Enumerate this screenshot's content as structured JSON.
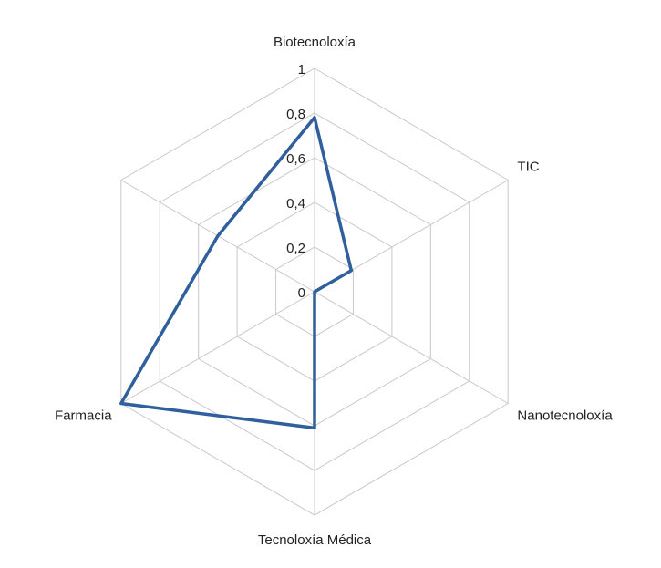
{
  "chart_data": {
    "type": "radar",
    "categories": [
      "Biotecnoloxía",
      "TIC",
      "Nanotecnoloxía",
      "Tecnoloxía Médica",
      "Farmacia",
      null
    ],
    "values": [
      0.78,
      0.19,
      0,
      0.61,
      1,
      0.5
    ],
    "color": "#2f5f9c",
    "ylim": [
      0,
      1
    ],
    "yticks": [
      0,
      {
        "value": 0.2,
        "label": "0,2"
      },
      {
        "value": 0.4,
        "label": "0,4"
      },
      {
        "value": 0.6,
        "label": "0,6"
      },
      {
        "value": 0.8,
        "label": "0,8"
      },
      1
    ],
    "grid": true
  }
}
